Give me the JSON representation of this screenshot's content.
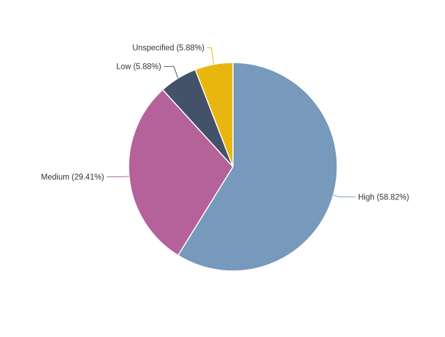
{
  "chart_data": {
    "type": "pie",
    "start_angle_deg": 0,
    "direction": "clockwise",
    "legend": "none",
    "slices": [
      {
        "name": "High",
        "value": 58.82,
        "label": "High (58.82%)",
        "color": "#7799bb"
      },
      {
        "name": "Medium",
        "value": 29.41,
        "label": "Medium (29.41%)",
        "color": "#b5619a"
      },
      {
        "name": "Low",
        "value": 5.88,
        "label": "Low (5.88%)",
        "color": "#435268"
      },
      {
        "name": "Unspecified",
        "value": 5.88,
        "label": "Unspecified (5.88%)",
        "color": "#e8b70f"
      }
    ]
  }
}
